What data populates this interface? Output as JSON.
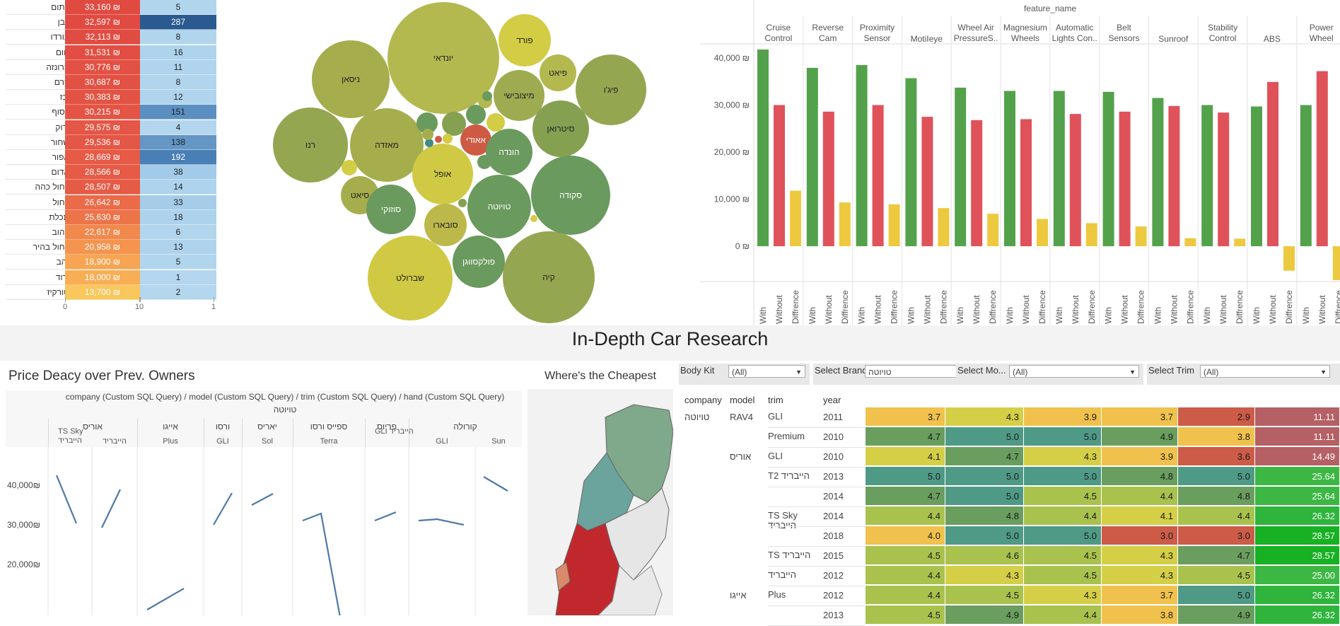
{
  "color_table": {
    "rows": [
      {
        "name": "כתום",
        "price": "33,160 ₪",
        "count": "5",
        "price_color": "#e04a41",
        "count_color": "#b2d5ee"
      },
      {
        "name": "לבן",
        "price": "32,597 ₪",
        "count": "287",
        "price_color": "#e04a41",
        "count_color": "#2a5a8f"
      },
      {
        "name": "בורדו",
        "price": "32,113 ₪",
        "count": "8",
        "price_color": "#e14c42",
        "count_color": "#b2d5ee"
      },
      {
        "name": "חום",
        "price": "31,531 ₪",
        "count": "16",
        "price_color": "#e24e43",
        "count_color": "#aed3ed"
      },
      {
        "name": "ברונזה",
        "price": "30,776 ₪",
        "count": "11",
        "price_color": "#e35144",
        "count_color": "#b0d4ed"
      },
      {
        "name": "קרם",
        "price": "30,687 ₪",
        "count": "8",
        "price_color": "#e35144",
        "count_color": "#b2d5ee"
      },
      {
        "name": "בז'",
        "price": "30,383 ₪",
        "count": "12",
        "price_color": "#e35344",
        "count_color": "#b0d4ed"
      },
      {
        "name": "כסוף",
        "price": "30,215 ₪",
        "count": "151",
        "price_color": "#e45445",
        "count_color": "#5b8fc2"
      },
      {
        "name": "ירוק",
        "price": "29,575 ₪",
        "count": "4",
        "price_color": "#e45645",
        "count_color": "#b3d6ee"
      },
      {
        "name": "שחור",
        "price": "29,536 ₪",
        "count": "138",
        "price_color": "#e45645",
        "count_color": "#6496c6"
      },
      {
        "name": "אפור",
        "price": "28,669 ₪",
        "count": "192",
        "price_color": "#e65a46",
        "count_color": "#4a7fb6"
      },
      {
        "name": "אדום",
        "price": "28,566 ₪",
        "count": "38",
        "price_color": "#e65a46",
        "count_color": "#a2cbe9"
      },
      {
        "name": "כחול כהה",
        "price": "28,507 ₪",
        "count": "14",
        "price_color": "#e65b46",
        "count_color": "#aed3ed"
      },
      {
        "name": "כחול",
        "price": "26,642 ₪",
        "count": "33",
        "price_color": "#eb6a48",
        "count_color": "#a5cdea"
      },
      {
        "name": "תכלת",
        "price": "25,630 ₪",
        "count": "18",
        "price_color": "#ed7349",
        "count_color": "#add2ec"
      },
      {
        "name": "צהוב",
        "price": "22,617 ₪",
        "count": "6",
        "price_color": "#f1884c",
        "count_color": "#b2d5ee"
      },
      {
        "name": "כחול בהיר",
        "price": "20,958 ₪",
        "count": "13",
        "price_color": "#f4944e",
        "count_color": "#afd3ed"
      },
      {
        "name": "זהב",
        "price": "18,900 ₪",
        "count": "5",
        "price_color": "#f7a552",
        "count_color": "#b2d5ee"
      },
      {
        "name": "ורוד",
        "price": "18,000 ₪",
        "count": "1",
        "price_color": "#f8ae55",
        "count_color": "#b4d6ee"
      },
      {
        "name": "טורקיז",
        "price": "13,700 ₪",
        "count": "2",
        "price_color": "#f9c75c",
        "count_color": "#b4d6ee"
      }
    ],
    "axis_labels": [
      "0",
      "1",
      "0",
      "1"
    ]
  },
  "bubbles": [
    {
      "label": "יונדאי",
      "color": "#b3b94f"
    },
    {
      "label": "ניסאן",
      "color": "#a6ad4d"
    },
    {
      "label": "פורד",
      "color": "#d3cc45"
    },
    {
      "label": "פיאט",
      "color": "#b3b94f"
    },
    {
      "label": "פיג'ו",
      "color": "#95a651"
    },
    {
      "label": "מיצובישי",
      "color": "#9eab50"
    },
    {
      "label": "רנו",
      "color": "#95a651"
    },
    {
      "label": "מאזדה",
      "color": "#a6ad4d"
    },
    {
      "label": "סיטרואן",
      "color": "#86a052"
    },
    {
      "label": "אאודי",
      "color": "#cf5a43"
    },
    {
      "label": "אופל",
      "color": "#cfc944"
    },
    {
      "label": "הונדה",
      "color": "#6a9a5e"
    },
    {
      "label": "סקודה",
      "color": "#6a9a5e"
    },
    {
      "label": "סיאט",
      "color": "#a6ad4d"
    },
    {
      "label": "סוזוקי",
      "color": "#6a9a5e"
    },
    {
      "label": "טויוטה",
      "color": "#6a9a5e"
    },
    {
      "label": "סובארו",
      "color": "#bcb84a"
    },
    {
      "label": "פולקסווגן",
      "color": "#6a9a5e"
    },
    {
      "label": "שברולט",
      "color": "#cfc944"
    },
    {
      "label": "קיה",
      "color": "#95a651"
    },
    {
      "label": "",
      "color": "#6a9a5e"
    },
    {
      "label": "",
      "color": "#86a052"
    },
    {
      "label": "",
      "color": "#6a9a5e"
    },
    {
      "label": "",
      "color": "#b3b94f"
    },
    {
      "label": "",
      "color": "#d3cc45"
    },
    {
      "label": "",
      "color": "#cf5a43"
    },
    {
      "label": "",
      "color": "#3f8b8b"
    },
    {
      "label": "",
      "color": "#d3cc45"
    },
    {
      "label": "",
      "color": "#a6ad4d"
    },
    {
      "label": "",
      "color": "#d3cc45"
    },
    {
      "label": "",
      "color": "#6a9a5e"
    },
    {
      "label": "",
      "color": "#86a052"
    },
    {
      "label": "",
      "color": "#d3cc45"
    },
    {
      "label": "",
      "color": "#6a9a5e"
    }
  ],
  "chart_data": {
    "type": "bar",
    "title": "feature_name",
    "categories": [
      "Cruise Control",
      "Reverse Cam",
      "Proximity Sensor",
      "MotiIeye",
      "Wheel Air PressureS..",
      "Magnesium Wheels",
      "Automatic Lights Con..",
      "Belt Sensors",
      "Sunroof",
      "Stability Control",
      "ABS",
      "Power Wheel"
    ],
    "series": [
      {
        "name": "With",
        "color": "#53a24b",
        "values": [
          41800,
          37900,
          38500,
          35700,
          33700,
          33000,
          33000,
          32800,
          31500,
          30000,
          29700,
          30000
        ]
      },
      {
        "name": "Without",
        "color": "#e0525a",
        "values": [
          30000,
          28600,
          30000,
          27500,
          26800,
          27000,
          28100,
          28600,
          29800,
          28400,
          34900,
          37200
        ]
      },
      {
        "name": "Diffrence",
        "color": "#ecc93f",
        "values": [
          11800,
          9300,
          8900,
          8100,
          6900,
          5800,
          4900,
          4200,
          1700,
          1600,
          -5200,
          -7200
        ]
      }
    ],
    "y_ticks": [
      "40,000 ₪",
      "30,000 ₪",
      "20,000 ₪",
      "10,000 ₪",
      "0 ₪"
    ],
    "ylim": [
      -7500,
      43000
    ]
  },
  "main_title": "In-Depth Car Research",
  "decay": {
    "title": "Price Deacy over Prev. Owners",
    "header": "company (Custom SQL Query) / model (Custom SQL Query) / trim (Custom SQL Query) / hand (Custom SQL Query)",
    "company": "טויוטה",
    "models": [
      "אוריס",
      "אייגו",
      "ורסו",
      "יאריס",
      "ספייס ורסו",
      "פריוס",
      "קורולה"
    ],
    "trims": [
      "TS Sky הייבריד",
      "הייבריד",
      "Plus",
      "GLI",
      "Sol",
      "Terra",
      "GLI הייבריד",
      "GLI",
      "Sun"
    ],
    "y_ticks": [
      "40,000₪",
      "30,000₪",
      "20,000₪"
    ]
  },
  "map": {
    "title": "Where's the Cheapest"
  },
  "research": {
    "filters": [
      {
        "label": "Body Kit",
        "value": "(All)"
      },
      {
        "label": "Select Brand",
        "value": "טויוטה"
      },
      {
        "label": "Select Mo...",
        "value": "(All)"
      },
      {
        "label": "Select Trim",
        "value": "(All)"
      }
    ],
    "headers": [
      "company",
      "model",
      "trim",
      "year"
    ],
    "rows": [
      {
        "company": "טויוטה",
        "model": "RAV4",
        "trim": "GLI",
        "year": "2011",
        "scores": [
          "3.7",
          "4.3",
          "3.9",
          "3.7",
          "2.9",
          "11.11"
        ]
      },
      {
        "company": "",
        "model": "",
        "trim": "Premium",
        "year": "2010",
        "scores": [
          "4.7",
          "5.0",
          "5.0",
          "4.9",
          "3.8",
          "11.11"
        ]
      },
      {
        "company": "",
        "model": "אוריס",
        "trim": "GLI",
        "year": "2010",
        "scores": [
          "4.1",
          "4.7",
          "4.3",
          "3.9",
          "3.6",
          "14.49"
        ]
      },
      {
        "company": "",
        "model": "",
        "trim": "T2 הייבריד",
        "year": "2013",
        "scores": [
          "5.0",
          "5.0",
          "5.0",
          "4.8",
          "5.0",
          "25.64"
        ]
      },
      {
        "company": "",
        "model": "",
        "trim": "",
        "year": "2014",
        "scores": [
          "4.7",
          "5.0",
          "4.5",
          "4.4",
          "4.8",
          "25.64"
        ]
      },
      {
        "company": "",
        "model": "",
        "trim": "TS Sky הייבריד",
        "year": "2014",
        "scores": [
          "4.4",
          "4.8",
          "4.4",
          "4.1",
          "4.4",
          "26.32"
        ]
      },
      {
        "company": "",
        "model": "",
        "trim": "",
        "year": "2018",
        "scores": [
          "4.0",
          "5.0",
          "5.0",
          "3.0",
          "3.0",
          "28.57"
        ]
      },
      {
        "company": "",
        "model": "",
        "trim": "TS הייבריד",
        "year": "2015",
        "scores": [
          "4.5",
          "4.6",
          "4.5",
          "4.3",
          "4.7",
          "28.57"
        ]
      },
      {
        "company": "",
        "model": "",
        "trim": "הייבריד",
        "year": "2012",
        "scores": [
          "4.4",
          "4.3",
          "4.5",
          "4.3",
          "4.5",
          "25.00"
        ]
      },
      {
        "company": "",
        "model": "אייגו",
        "trim": "Plus",
        "year": "2012",
        "scores": [
          "4.4",
          "4.5",
          "4.3",
          "3.7",
          "5.0",
          "26.32"
        ]
      },
      {
        "company": "",
        "model": "",
        "trim": "",
        "year": "2013",
        "scores": [
          "4.5",
          "4.9",
          "4.4",
          "3.8",
          "4.9",
          "26.32"
        ]
      }
    ]
  }
}
